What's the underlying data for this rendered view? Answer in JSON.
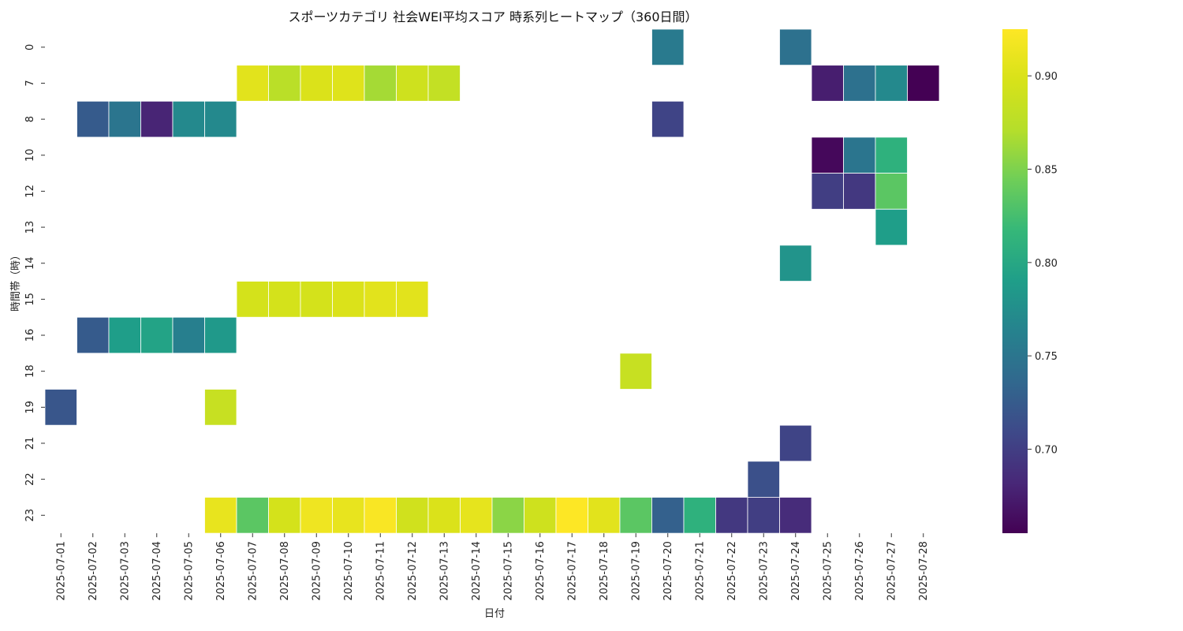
{
  "chart_data": {
    "type": "heatmap",
    "title": "スポーツカテゴリ 社会WEI平均スコア 時系列ヒートマップ（360日間）",
    "xlabel": "日付",
    "ylabel": "時間帯（時）",
    "colormap": "viridis",
    "color_range": [
      0.655,
      0.925
    ],
    "colorbar_ticks": [
      "0.70",
      "0.75",
      "0.80",
      "0.85",
      "0.90"
    ],
    "grid": false,
    "x": [
      "2025-07-01",
      "2025-07-02",
      "2025-07-03",
      "2025-07-04",
      "2025-07-05",
      "2025-07-06",
      "2025-07-07",
      "2025-07-08",
      "2025-07-09",
      "2025-07-10",
      "2025-07-11",
      "2025-07-12",
      "2025-07-13",
      "2025-07-14",
      "2025-07-15",
      "2025-07-16",
      "2025-07-17",
      "2025-07-18",
      "2025-07-19",
      "2025-07-20",
      "2025-07-21",
      "2025-07-22",
      "2025-07-23",
      "2025-07-24",
      "2025-07-25",
      "2025-07-26",
      "2025-07-27",
      "2025-07-28"
    ],
    "y": [
      "0",
      "7",
      "8",
      "10",
      "12",
      "13",
      "14",
      "15",
      "16",
      "18",
      "19",
      "21",
      "22",
      "23"
    ],
    "cells": [
      {
        "x": "2025-07-20",
        "y": "0",
        "value": 0.755
      },
      {
        "x": "2025-07-24",
        "y": "0",
        "value": 0.745
      },
      {
        "x": "2025-07-07",
        "y": "7",
        "value": 0.905
      },
      {
        "x": "2025-07-08",
        "y": "7",
        "value": 0.875
      },
      {
        "x": "2025-07-09",
        "y": "7",
        "value": 0.9
      },
      {
        "x": "2025-07-10",
        "y": "7",
        "value": 0.903
      },
      {
        "x": "2025-07-11",
        "y": "7",
        "value": 0.865
      },
      {
        "x": "2025-07-12",
        "y": "7",
        "value": 0.89
      },
      {
        "x": "2025-07-13",
        "y": "7",
        "value": 0.882
      },
      {
        "x": "2025-07-25",
        "y": "7",
        "value": 0.675
      },
      {
        "x": "2025-07-26",
        "y": "7",
        "value": 0.745
      },
      {
        "x": "2025-07-27",
        "y": "7",
        "value": 0.77
      },
      {
        "x": "2025-07-28",
        "y": "7",
        "value": 0.655
      },
      {
        "x": "2025-07-02",
        "y": "8",
        "value": 0.725
      },
      {
        "x": "2025-07-03",
        "y": "8",
        "value": 0.75
      },
      {
        "x": "2025-07-04",
        "y": "8",
        "value": 0.68
      },
      {
        "x": "2025-07-05",
        "y": "8",
        "value": 0.77
      },
      {
        "x": "2025-07-06",
        "y": "8",
        "value": 0.77
      },
      {
        "x": "2025-07-20",
        "y": "8",
        "value": 0.705
      },
      {
        "x": "2025-07-25",
        "y": "10",
        "value": 0.66
      },
      {
        "x": "2025-07-26",
        "y": "10",
        "value": 0.75
      },
      {
        "x": "2025-07-27",
        "y": "10",
        "value": 0.81
      },
      {
        "x": "2025-07-25",
        "y": "12",
        "value": 0.7
      },
      {
        "x": "2025-07-26",
        "y": "12",
        "value": 0.695
      },
      {
        "x": "2025-07-27",
        "y": "12",
        "value": 0.835
      },
      {
        "x": "2025-07-27",
        "y": "13",
        "value": 0.79
      },
      {
        "x": "2025-07-24",
        "y": "14",
        "value": 0.78
      },
      {
        "x": "2025-07-07",
        "y": "15",
        "value": 0.895
      },
      {
        "x": "2025-07-08",
        "y": "15",
        "value": 0.895
      },
      {
        "x": "2025-07-09",
        "y": "15",
        "value": 0.895
      },
      {
        "x": "2025-07-10",
        "y": "15",
        "value": 0.9
      },
      {
        "x": "2025-07-11",
        "y": "15",
        "value": 0.905
      },
      {
        "x": "2025-07-12",
        "y": "15",
        "value": 0.905
      },
      {
        "x": "2025-07-02",
        "y": "16",
        "value": 0.725
      },
      {
        "x": "2025-07-03",
        "y": "16",
        "value": 0.79
      },
      {
        "x": "2025-07-04",
        "y": "16",
        "value": 0.795
      },
      {
        "x": "2025-07-05",
        "y": "16",
        "value": 0.76
      },
      {
        "x": "2025-07-06",
        "y": "16",
        "value": 0.785
      },
      {
        "x": "2025-07-19",
        "y": "18",
        "value": 0.885
      },
      {
        "x": "2025-07-01",
        "y": "19",
        "value": 0.72
      },
      {
        "x": "2025-07-06",
        "y": "19",
        "value": 0.885
      },
      {
        "x": "2025-07-24",
        "y": "21",
        "value": 0.705
      },
      {
        "x": "2025-07-23",
        "y": "22",
        "value": 0.715
      },
      {
        "x": "2025-07-06",
        "y": "23",
        "value": 0.91
      },
      {
        "x": "2025-07-07",
        "y": "23",
        "value": 0.835
      },
      {
        "x": "2025-07-08",
        "y": "23",
        "value": 0.895
      },
      {
        "x": "2025-07-09",
        "y": "23",
        "value": 0.915
      },
      {
        "x": "2025-07-10",
        "y": "23",
        "value": 0.91
      },
      {
        "x": "2025-07-11",
        "y": "23",
        "value": 0.922
      },
      {
        "x": "2025-07-12",
        "y": "23",
        "value": 0.892
      },
      {
        "x": "2025-07-13",
        "y": "23",
        "value": 0.9
      },
      {
        "x": "2025-07-14",
        "y": "23",
        "value": 0.908
      },
      {
        "x": "2025-07-15",
        "y": "23",
        "value": 0.855
      },
      {
        "x": "2025-07-16",
        "y": "23",
        "value": 0.89
      },
      {
        "x": "2025-07-17",
        "y": "23",
        "value": 0.925
      },
      {
        "x": "2025-07-18",
        "y": "23",
        "value": 0.905
      },
      {
        "x": "2025-07-19",
        "y": "23",
        "value": 0.835
      },
      {
        "x": "2025-07-20",
        "y": "23",
        "value": 0.73
      },
      {
        "x": "2025-07-21",
        "y": "23",
        "value": 0.81
      },
      {
        "x": "2025-07-22",
        "y": "23",
        "value": 0.695
      },
      {
        "x": "2025-07-23",
        "y": "23",
        "value": 0.7
      },
      {
        "x": "2025-07-24",
        "y": "23",
        "value": 0.685
      }
    ]
  }
}
